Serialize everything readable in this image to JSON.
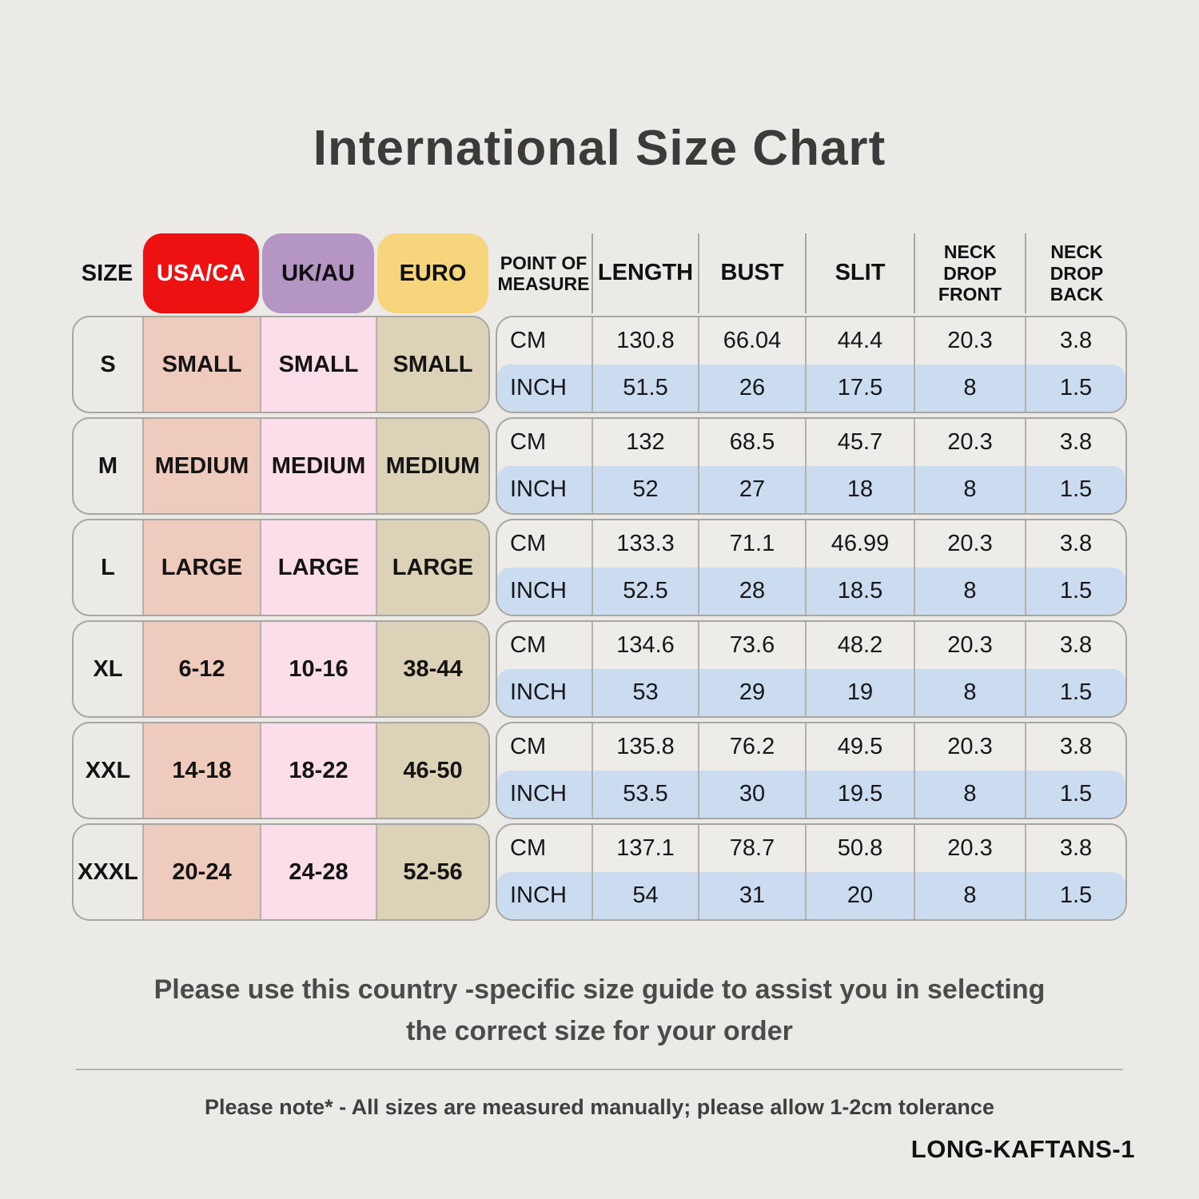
{
  "title": "International Size Chart",
  "size_table": {
    "headers": {
      "size": "SIZE",
      "usa": "USA/CA",
      "uk": "UK/AU",
      "euro": "EURO"
    },
    "rows": [
      {
        "size": "S",
        "usa": "SMALL",
        "uk": "SMALL",
        "euro": "SMALL"
      },
      {
        "size": "M",
        "usa": "MEDIUM",
        "uk": "MEDIUM",
        "euro": "MEDIUM"
      },
      {
        "size": "L",
        "usa": "LARGE",
        "uk": "LARGE",
        "euro": "LARGE"
      },
      {
        "size": "XL",
        "usa": "6-12",
        "uk": "10-16",
        "euro": "38-44"
      },
      {
        "size": "XXL",
        "usa": "14-18",
        "uk": "18-22",
        "euro": "46-50"
      },
      {
        "size": "XXXL",
        "usa": "20-24",
        "uk": "24-28",
        "euro": "52-56"
      }
    ]
  },
  "measure_table": {
    "headers": [
      "POINT OF MEASURE",
      "LENGTH",
      "BUST",
      "SLIT",
      "NECK DROP FRONT",
      "NECK DROP BACK"
    ],
    "row_labels": {
      "cm": "CM",
      "inch": "INCH"
    },
    "groups": [
      {
        "cm": [
          "130.8",
          "66.04",
          "44.4",
          "20.3",
          "3.8"
        ],
        "inch": [
          "51.5",
          "26",
          "17.5",
          "8",
          "1.5"
        ]
      },
      {
        "cm": [
          "132",
          "68.5",
          "45.7",
          "20.3",
          "3.8"
        ],
        "inch": [
          "52",
          "27",
          "18",
          "8",
          "1.5"
        ]
      },
      {
        "cm": [
          "133.3",
          "71.1",
          "46.99",
          "20.3",
          "3.8"
        ],
        "inch": [
          "52.5",
          "28",
          "18.5",
          "8",
          "1.5"
        ]
      },
      {
        "cm": [
          "134.6",
          "73.6",
          "48.2",
          "20.3",
          "3.8"
        ],
        "inch": [
          "53",
          "29",
          "19",
          "8",
          "1.5"
        ]
      },
      {
        "cm": [
          "135.8",
          "76.2",
          "49.5",
          "20.3",
          "3.8"
        ],
        "inch": [
          "53.5",
          "30",
          "19.5",
          "8",
          "1.5"
        ]
      },
      {
        "cm": [
          "137.1",
          "78.7",
          "50.8",
          "20.3",
          "3.8"
        ],
        "inch": [
          "54",
          "31",
          "20",
          "8",
          "1.5"
        ]
      }
    ]
  },
  "footer": {
    "guide_line1": "Please use this country -specific size guide to assist you in selecting",
    "guide_line2": "the correct size for your order",
    "tolerance_note": "Please note* - All sizes are measured manually; please allow 1-2cm tolerance",
    "sku": "LONG-KAFTANS-1"
  },
  "colors": {
    "background": "#ECEAE6",
    "title_text": "#3B3B3B",
    "usa_header": "#EE1112",
    "usa_header_text": "#FFFFFF",
    "uk_header": "#B495C4",
    "euro_header": "#F6D57D",
    "usa_column": "#EECBBC",
    "uk_column": "#FBDEE9",
    "euro_column": "#DCD2B8",
    "cm_row": "#EDECE8",
    "inch_row": "#CBDCF0",
    "border": "#A8A6A0"
  }
}
